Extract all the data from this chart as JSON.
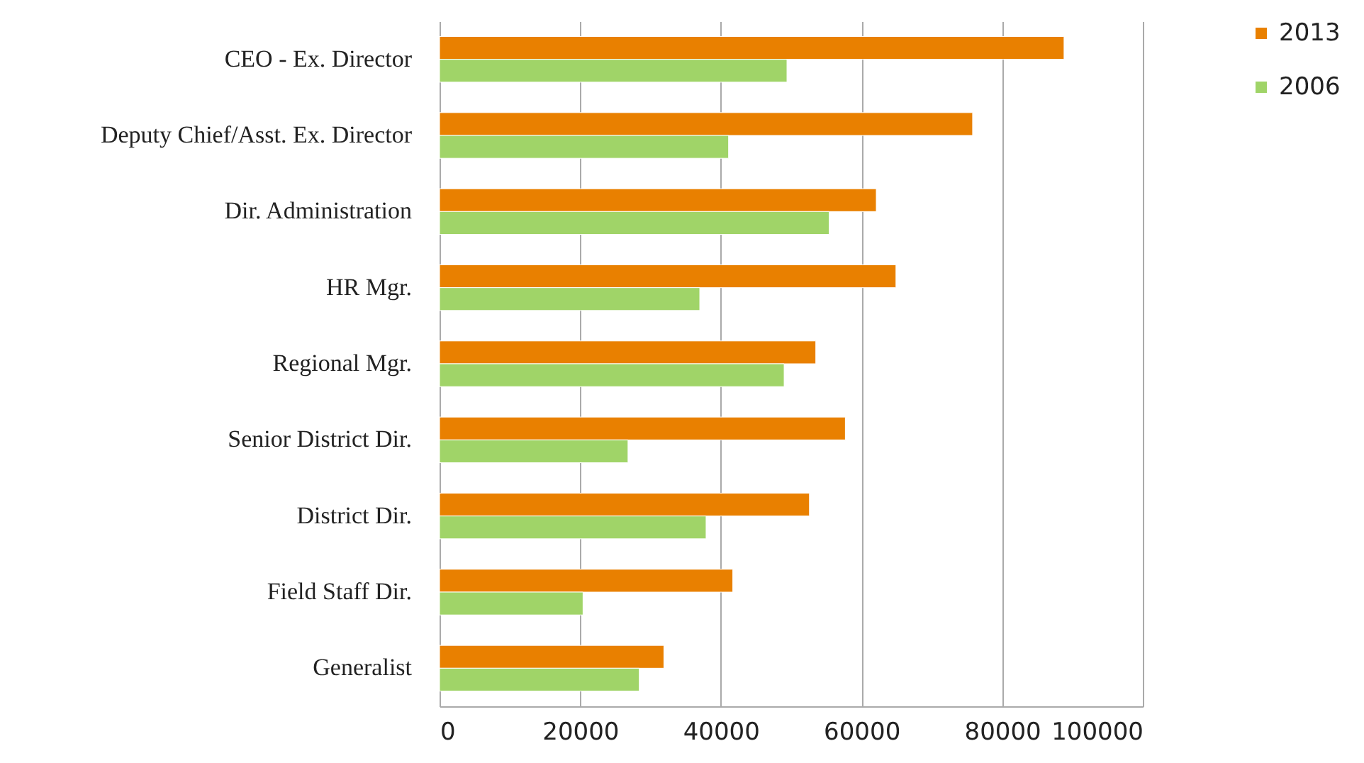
{
  "chart_data": {
    "type": "bar",
    "orientation": "horizontal",
    "categories": [
      "CEO - Ex. Director",
      "Deputy Chief/Asst. Ex. Director",
      "Dir. Administration",
      "HR Mgr.",
      "Regional Mgr.",
      "Senior District Dir.",
      "District Dir.",
      "Field Staff Dir.",
      "Generalist"
    ],
    "series": [
      {
        "name": "2013",
        "color": "#e98000",
        "values": [
          88800,
          75800,
          62100,
          64900,
          53500,
          57700,
          52600,
          41700,
          31900
        ]
      },
      {
        "name": "2006",
        "color": "#a0d468",
        "values": [
          49400,
          41100,
          55400,
          37000,
          49000,
          26800,
          37900,
          20400,
          28400
        ]
      }
    ],
    "xlim": [
      0,
      100000
    ],
    "xticks": [
      0,
      20000,
      40000,
      60000,
      80000,
      100000
    ],
    "grid": "x",
    "legend": "right"
  }
}
